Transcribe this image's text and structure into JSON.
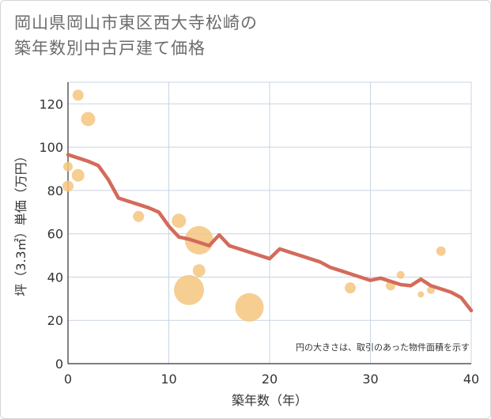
{
  "title": {
    "line1": "岡山県岡山市東区西大寺松崎の",
    "line2": "築年数別中古戸建て価格"
  },
  "colors": {
    "line": "#d36b5b",
    "bubble": "#f5c57f",
    "grid": "#c8d4e2",
    "text": "#333333",
    "title": "#6b6b6b"
  },
  "chart_data": {
    "type": "scatter",
    "xlabel": "築年数（年）",
    "ylabel": "坪（3.3㎡）単価（万円）",
    "xlim": [
      0,
      40
    ],
    "ylim": [
      0,
      130
    ],
    "xticks": [
      0,
      10,
      20,
      30,
      40
    ],
    "yticks": [
      0,
      20,
      40,
      60,
      80,
      100,
      120
    ],
    "grid": true,
    "note": "円の大きさは、取引のあった物件面積を示す",
    "trend_line": [
      [
        0,
        96.5
      ],
      [
        1,
        95
      ],
      [
        2,
        93.5
      ],
      [
        3,
        91.5
      ],
      [
        4,
        85
      ],
      [
        5,
        76.5
      ],
      [
        6,
        75
      ],
      [
        7,
        73.5
      ],
      [
        8,
        72
      ],
      [
        9,
        70
      ],
      [
        10,
        63.5
      ],
      [
        11,
        58.5
      ],
      [
        12,
        57.5
      ],
      [
        13,
        56
      ],
      [
        14,
        54.5
      ],
      [
        15,
        59.5
      ],
      [
        16,
        54.5
      ],
      [
        17,
        53
      ],
      [
        18,
        51.5
      ],
      [
        19,
        50
      ],
      [
        20,
        48.5
      ],
      [
        21,
        53
      ],
      [
        22,
        51.5
      ],
      [
        23,
        50
      ],
      [
        24,
        48.5
      ],
      [
        25,
        47
      ],
      [
        26,
        44.5
      ],
      [
        27,
        43
      ],
      [
        28,
        41.5
      ],
      [
        29,
        40
      ],
      [
        30,
        38.5
      ],
      [
        31,
        39.5
      ],
      [
        32,
        38
      ],
      [
        33,
        36.5
      ],
      [
        34,
        36
      ],
      [
        35,
        39
      ],
      [
        36,
        36
      ],
      [
        37,
        34.5
      ],
      [
        38,
        33
      ],
      [
        39,
        30.5
      ],
      [
        40,
        24.5
      ]
    ],
    "bubbles": [
      {
        "x": 0,
        "y": 91,
        "size": 6
      },
      {
        "x": 0,
        "y": 82,
        "size": 7
      },
      {
        "x": 1,
        "y": 124,
        "size": 7
      },
      {
        "x": 1,
        "y": 87,
        "size": 8
      },
      {
        "x": 2,
        "y": 113,
        "size": 9
      },
      {
        "x": 7,
        "y": 68,
        "size": 7
      },
      {
        "x": 11,
        "y": 66,
        "size": 9
      },
      {
        "x": 12,
        "y": 34,
        "size": 19
      },
      {
        "x": 13,
        "y": 57,
        "size": 18
      },
      {
        "x": 13,
        "y": 43,
        "size": 8
      },
      {
        "x": 18,
        "y": 26,
        "size": 18
      },
      {
        "x": 28,
        "y": 35,
        "size": 7
      },
      {
        "x": 32,
        "y": 36,
        "size": 6
      },
      {
        "x": 33,
        "y": 41,
        "size": 5
      },
      {
        "x": 35,
        "y": 32,
        "size": 4
      },
      {
        "x": 36,
        "y": 34,
        "size": 5
      },
      {
        "x": 37,
        "y": 52,
        "size": 6
      }
    ]
  }
}
